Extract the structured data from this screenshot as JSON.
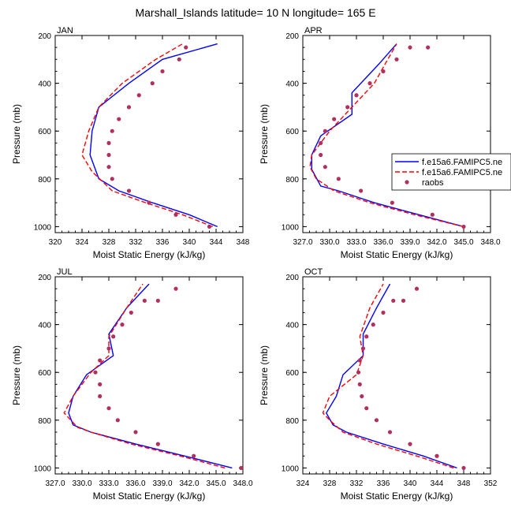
{
  "title": "Marshall_Islands  latitude= 10 N longitude= 165 E",
  "colors": {
    "model1": "#0000ff",
    "model2": "#ff0000",
    "raobs": "#b03060"
  },
  "legend": [
    {
      "name": "f.e15a6.FAMIPC5.ne",
      "style": "solid-blue"
    },
    {
      "name": "f.e15a6.FAMIPC5.ne",
      "style": "dashed-red"
    },
    {
      "name": "raobs",
      "style": "dot"
    }
  ],
  "chart_data": [
    {
      "type": "line",
      "panel_label": "JAN",
      "xlabel": "Moist Static Energy (kJ/kg)",
      "ylabel": "Pressure (mb)",
      "xlim": [
        320,
        348
      ],
      "ylim": [
        200,
        1025
      ],
      "y_reversed": true,
      "xticks": [
        "320",
        "324",
        "328",
        "332",
        "336",
        "340",
        "344",
        "348"
      ],
      "yticks": [
        "200",
        "400",
        "600",
        "800",
        "1000"
      ],
      "series": [
        {
          "name": "f.e15a6.FAMIPC5.ne",
          "style": "solid",
          "x": [
            344.2,
            340.0,
            334.5,
            329.5,
            326.5,
            325.2,
            325.5,
            326.5,
            331.0,
            336.0,
            344.2
          ],
          "y": [
            1000,
            950,
            900,
            850,
            800,
            700,
            600,
            500,
            400,
            300,
            235
          ]
        },
        {
          "name": "f.e15a6.FAMIPC5.ne",
          "style": "dashed",
          "x": [
            343.5,
            339.0,
            333.5,
            328.5,
            325.5,
            324.0,
            325.0,
            326.5,
            330.0,
            335.0,
            339.0
          ],
          "y": [
            1000,
            950,
            900,
            850,
            770,
            700,
            600,
            500,
            400,
            300,
            235
          ]
        },
        {
          "name": "raobs",
          "style": "dots",
          "x": [
            343.0,
            338.0,
            334.0,
            331.0,
            328.5,
            328.0,
            328.0,
            328.0,
            328.5,
            329.5,
            331.0,
            332.5,
            334.5,
            336.0,
            338.5,
            339.5
          ],
          "y": [
            1000,
            950,
            900,
            850,
            800,
            750,
            700,
            650,
            600,
            550,
            500,
            450,
            400,
            350,
            300,
            250
          ]
        }
      ]
    },
    {
      "type": "line",
      "panel_label": "APR",
      "xlabel": "Moist Static Energy (kJ/kg)",
      "ylabel": "Pressure (mb)",
      "xlim": [
        327,
        348
      ],
      "ylim": [
        200,
        1025
      ],
      "y_reversed": true,
      "xticks": [
        "327.0",
        "330.0",
        "333.0",
        "336.0",
        "339.0",
        "342.0",
        "345.0",
        "348.0"
      ],
      "yticks": [
        "200",
        "400",
        "600",
        "800",
        "1000"
      ],
      "series": [
        {
          "name": "f.e15a6.FAMIPC5.ne",
          "style": "solid",
          "x": [
            345.0,
            340.0,
            335.0,
            331.0,
            329.0,
            328.0,
            328.0,
            329.0,
            332.5,
            332.5,
            335.5,
            337.5
          ],
          "y": [
            1000,
            950,
            900,
            850,
            830,
            760,
            700,
            620,
            530,
            440,
            320,
            235
          ]
        },
        {
          "name": "f.e15a6.FAMIPC5.ne",
          "style": "dashed",
          "x": [
            345.0,
            339.5,
            334.5,
            330.5,
            328.5,
            327.8,
            328.0,
            330.0,
            332.5,
            335.0,
            336.5,
            337.5
          ],
          "y": [
            1000,
            950,
            900,
            850,
            800,
            750,
            700,
            600,
            500,
            400,
            300,
            235
          ]
        },
        {
          "name": "raobs",
          "style": "dots",
          "x": [
            345.0,
            341.5,
            337.0,
            333.5,
            331.0,
            329.5,
            329.0,
            329.0,
            329.5,
            330.5,
            332.0,
            333.0,
            334.5,
            336.0,
            337.5,
            339.0,
            341.0
          ],
          "y": [
            1000,
            950,
            900,
            850,
            800,
            750,
            700,
            650,
            600,
            550,
            500,
            450,
            400,
            350,
            300,
            250,
            250
          ]
        }
      ]
    },
    {
      "type": "line",
      "panel_label": "JUL",
      "xlabel": "Moist Static Energy (kJ/kg)",
      "ylabel": "Pressure (mb)",
      "xlim": [
        327,
        348
      ],
      "ylim": [
        200,
        1025
      ],
      "y_reversed": true,
      "xticks": [
        "327.0",
        "330.0",
        "333.0",
        "336.0",
        "339.0",
        "342.0",
        "345.0",
        "348.0"
      ],
      "yticks": [
        "200",
        "400",
        "600",
        "800",
        "1000"
      ],
      "series": [
        {
          "name": "f.e15a6.FAMIPC5.ne",
          "style": "solid",
          "x": [
            346.8,
            341.5,
            336.0,
            331.0,
            329.0,
            328.5,
            329.0,
            330.5,
            333.5,
            333.0,
            335.0,
            337.5
          ],
          "y": [
            1000,
            950,
            900,
            850,
            820,
            770,
            700,
            610,
            530,
            440,
            330,
            230
          ]
        },
        {
          "name": "f.e15a6.FAMIPC5.ne",
          "style": "dashed",
          "x": [
            346.0,
            341.0,
            335.5,
            331.0,
            329.5,
            328.0,
            329.0,
            331.0,
            333.0,
            333.0,
            335.0,
            336.8
          ],
          "y": [
            1000,
            950,
            900,
            850,
            830,
            770,
            700,
            600,
            530,
            450,
            330,
            230
          ]
        },
        {
          "name": "raobs",
          "style": "dots",
          "x": [
            347.8,
            342.5,
            338.5,
            336.0,
            334.0,
            333.0,
            332.0,
            332.0,
            331.5,
            332.0,
            333.0,
            333.5,
            334.5,
            335.5,
            337.0,
            338.5,
            340.5
          ],
          "y": [
            1000,
            950,
            900,
            850,
            800,
            750,
            700,
            650,
            600,
            550,
            500,
            450,
            400,
            350,
            300,
            300,
            250
          ]
        }
      ]
    },
    {
      "type": "line",
      "panel_label": "OCT",
      "xlabel": "Moist Static Energy (kJ/kg)",
      "ylabel": "Pressure (mb)",
      "xlim": [
        324,
        352
      ],
      "ylim": [
        200,
        1025
      ],
      "y_reversed": true,
      "xticks": [
        "324",
        "328",
        "332",
        "336",
        "340",
        "344",
        "348",
        "352"
      ],
      "yticks": [
        "200",
        "400",
        "600",
        "800",
        "1000"
      ],
      "series": [
        {
          "name": "f.e15a6.FAMIPC5.ne",
          "style": "solid",
          "x": [
            347.0,
            342.0,
            336.0,
            330.5,
            328.5,
            327.5,
            329.0,
            330.0,
            333.0,
            333.0,
            335.0,
            337.0
          ],
          "y": [
            1000,
            950,
            900,
            850,
            820,
            770,
            700,
            610,
            530,
            440,
            330,
            230
          ]
        },
        {
          "name": "f.e15a6.FAMIPC5.ne",
          "style": "dashed",
          "x": [
            346.5,
            341.0,
            335.0,
            330.0,
            328.0,
            327.0,
            328.0,
            332.0,
            333.0,
            332.5,
            334.0,
            336.0
          ],
          "y": [
            1000,
            950,
            900,
            850,
            800,
            770,
            700,
            610,
            530,
            450,
            330,
            230
          ]
        },
        {
          "name": "raobs",
          "style": "dots",
          "x": [
            348.0,
            344.0,
            340.0,
            337.0,
            335.0,
            333.5,
            332.8,
            332.5,
            332.3,
            332.5,
            333.0,
            333.5,
            334.5,
            336.0,
            337.5,
            339.0,
            341.0
          ],
          "y": [
            1000,
            950,
            900,
            850,
            800,
            750,
            700,
            650,
            600,
            550,
            500,
            450,
            400,
            350,
            300,
            300,
            250
          ]
        }
      ]
    }
  ]
}
